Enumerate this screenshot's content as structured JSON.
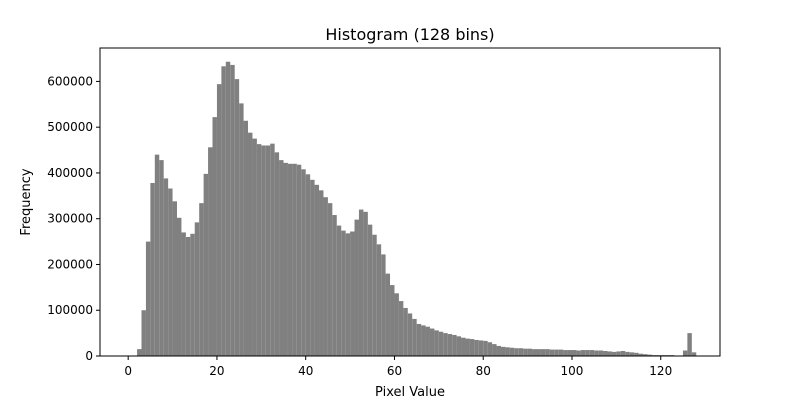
{
  "chart_data": {
    "type": "bar",
    "title": "Histogram (128 bins)",
    "xlabel": "Pixel Value",
    "ylabel": "Frequency",
    "xlim": [
      -6.35,
      133.35
    ],
    "ylim": [
      0,
      673000
    ],
    "xticks": [
      0,
      20,
      40,
      60,
      80,
      100,
      120
    ],
    "yticks": [
      0,
      100000,
      200000,
      300000,
      400000,
      500000,
      600000
    ],
    "bar_color": "#808080",
    "bin_start": 0,
    "bin_width": 1,
    "values": [
      0,
      0,
      15000,
      100000,
      250000,
      378000,
      440000,
      428000,
      388000,
      366000,
      338000,
      302000,
      270000,
      260000,
      267000,
      292000,
      334000,
      398000,
      456000,
      522000,
      594000,
      633000,
      643000,
      636000,
      605000,
      552000,
      514000,
      488000,
      475000,
      463000,
      460000,
      460000,
      464000,
      445000,
      428000,
      422000,
      420000,
      420000,
      418000,
      408000,
      397000,
      385000,
      374000,
      362000,
      347000,
      334000,
      308000,
      285000,
      274000,
      268000,
      272000,
      298000,
      320000,
      315000,
      287000,
      265000,
      244000,
      222000,
      180000,
      155000,
      137000,
      120000,
      105000,
      93000,
      81000,
      70000,
      67000,
      64000,
      60000,
      56000,
      53000,
      50000,
      48000,
      46000,
      43000,
      40000,
      38000,
      37000,
      35000,
      34000,
      33000,
      30000,
      26000,
      22000,
      20000,
      19000,
      18000,
      17000,
      17000,
      16000,
      16000,
      15000,
      15000,
      15000,
      15000,
      14000,
      14000,
      14000,
      13000,
      13000,
      13000,
      12000,
      13000,
      13000,
      13000,
      12000,
      12000,
      11000,
      10000,
      9000,
      10000,
      11000,
      9000,
      8000,
      7000,
      5000,
      4000,
      3000,
      2000,
      2000,
      2000,
      2000,
      2000,
      1000,
      1000,
      12000,
      50000,
      8000
    ]
  }
}
